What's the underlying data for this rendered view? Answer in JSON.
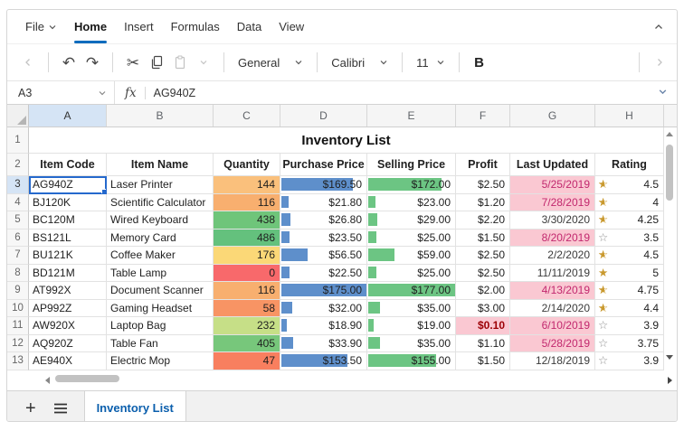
{
  "menu": {
    "items": [
      {
        "label": "File",
        "has_dropdown": true,
        "active": false
      },
      {
        "label": "Home",
        "has_dropdown": false,
        "active": true
      },
      {
        "label": "Insert",
        "has_dropdown": false,
        "active": false
      },
      {
        "label": "Formulas",
        "has_dropdown": false,
        "active": false
      },
      {
        "label": "Data",
        "has_dropdown": false,
        "active": false
      },
      {
        "label": "View",
        "has_dropdown": false,
        "active": false
      }
    ]
  },
  "toolbar": {
    "icons": {
      "undo": "↶",
      "redo": "↷",
      "cut": "✂"
    },
    "number_format": "General",
    "font_name": "Calibri",
    "font_size": "11",
    "bold_label": "B"
  },
  "formula_bar": {
    "name_box": "A3",
    "fx_label": "fx",
    "content": "AG940Z"
  },
  "grid": {
    "columns": [
      {
        "letter": "A",
        "selected": true
      },
      {
        "letter": "B",
        "selected": false
      },
      {
        "letter": "C",
        "selected": false
      },
      {
        "letter": "D",
        "selected": false
      },
      {
        "letter": "E",
        "selected": false
      },
      {
        "letter": "F",
        "selected": false
      },
      {
        "letter": "G",
        "selected": false
      },
      {
        "letter": "H",
        "selected": false
      }
    ],
    "title_row": {
      "number": "1",
      "title": "Inventory List"
    },
    "header_row": {
      "number": "2",
      "cells": [
        "Item Code",
        "Item Name",
        "Quantity",
        "Purchase Price",
        "Selling Price",
        "Profit",
        "Last Updated",
        "Rating"
      ]
    },
    "rows": [
      {
        "number": "3",
        "selected": true,
        "item_code": "AG940Z",
        "item_name": "Laser Printer",
        "quantity": "144",
        "qty_color": "#fac07c",
        "purchase": "$169.50",
        "purchase_bar_pct": 83,
        "selling": "$172.00",
        "selling_bar_pct": 83,
        "profit": "$2.50",
        "profit_low": false,
        "last_updated": "5/25/2019",
        "date_overdue": true,
        "star": "half",
        "rating": "4.5"
      },
      {
        "number": "4",
        "selected": false,
        "item_code": "BJ120K",
        "item_name": "Scientific Calculator",
        "quantity": "116",
        "qty_color": "#f8af6f",
        "purchase": "$21.80",
        "purchase_bar_pct": 8,
        "selling": "$23.00",
        "selling_bar_pct": 8,
        "profit": "$1.20",
        "profit_low": false,
        "last_updated": "7/28/2019",
        "date_overdue": true,
        "star": "half",
        "rating": "4"
      },
      {
        "number": "5",
        "selected": false,
        "item_code": "BC120M",
        "item_name": "Wired Keyboard",
        "quantity": "438",
        "qty_color": "#6fc57a",
        "purchase": "$26.80",
        "purchase_bar_pct": 10,
        "selling": "$29.00",
        "selling_bar_pct": 10,
        "profit": "$2.20",
        "profit_low": false,
        "last_updated": "3/30/2020",
        "date_overdue": false,
        "star": "half",
        "rating": "4.25"
      },
      {
        "number": "6",
        "selected": false,
        "item_code": "BS121L",
        "item_name": "Memory Card",
        "quantity": "486",
        "qty_color": "#64c17d",
        "purchase": "$23.50",
        "purchase_bar_pct": 9,
        "selling": "$25.00",
        "selling_bar_pct": 9,
        "profit": "$1.50",
        "profit_low": false,
        "last_updated": "8/20/2019",
        "date_overdue": true,
        "star": "empty",
        "rating": "3.5"
      },
      {
        "number": "7",
        "selected": false,
        "item_code": "BU121K",
        "item_name": "Coffee Maker",
        "quantity": "176",
        "qty_color": "#fbd877",
        "purchase": "$56.50",
        "purchase_bar_pct": 30,
        "selling": "$59.00",
        "selling_bar_pct": 30,
        "profit": "$2.50",
        "profit_low": false,
        "last_updated": "2/2/2020",
        "date_overdue": false,
        "star": "half",
        "rating": "4.5"
      },
      {
        "number": "8",
        "selected": false,
        "item_code": "BD121M",
        "item_name": "Table Lamp",
        "quantity": "0",
        "qty_color": "#f8696b",
        "purchase": "$22.50",
        "purchase_bar_pct": 9,
        "selling": "$25.00",
        "selling_bar_pct": 9,
        "profit": "$2.50",
        "profit_low": false,
        "last_updated": "11/11/2019",
        "date_overdue": false,
        "star": "full",
        "rating": "5"
      },
      {
        "number": "9",
        "selected": false,
        "item_code": "AT992X",
        "item_name": "Document Scanner",
        "quantity": "116",
        "qty_color": "#f8af6f",
        "purchase": "$175.00",
        "purchase_bar_pct": 100,
        "selling": "$177.00",
        "selling_bar_pct": 100,
        "profit": "$2.00",
        "profit_low": false,
        "last_updated": "4/13/2019",
        "date_overdue": true,
        "star": "half",
        "rating": "4.75"
      },
      {
        "number": "10",
        "selected": false,
        "item_code": "AP992Z",
        "item_name": "Gaming Headset",
        "quantity": "58",
        "qty_color": "#f89464",
        "purchase": "$32.00",
        "purchase_bar_pct": 13,
        "selling": "$35.00",
        "selling_bar_pct": 13,
        "profit": "$3.00",
        "profit_low": false,
        "last_updated": "2/14/2020",
        "date_overdue": false,
        "star": "half",
        "rating": "4.4"
      },
      {
        "number": "11",
        "selected": false,
        "item_code": "AW920X",
        "item_name": "Laptop Bag",
        "quantity": "232",
        "qty_color": "#c6df87",
        "purchase": "$18.90",
        "purchase_bar_pct": 6,
        "selling": "$19.00",
        "selling_bar_pct": 6,
        "profit": "$0.10",
        "profit_low": true,
        "last_updated": "6/10/2019",
        "date_overdue": true,
        "star": "empty",
        "rating": "3.9"
      },
      {
        "number": "12",
        "selected": false,
        "item_code": "AQ920Z",
        "item_name": "Table Fan",
        "quantity": "405",
        "qty_color": "#77c77b",
        "purchase": "$33.90",
        "purchase_bar_pct": 14,
        "selling": "$35.00",
        "selling_bar_pct": 13,
        "profit": "$1.10",
        "profit_low": false,
        "last_updated": "5/28/2019",
        "date_overdue": true,
        "star": "empty",
        "rating": "3.75"
      },
      {
        "number": "13",
        "selected": false,
        "item_code": "AE940X",
        "item_name": "Electric Mop",
        "quantity": "47",
        "qty_color": "#f87f5f",
        "purchase": "$153.50",
        "purchase_bar_pct": 77,
        "selling": "$155.00",
        "selling_bar_pct": 77,
        "profit": "$1.50",
        "profit_low": false,
        "last_updated": "12/18/2019",
        "date_overdue": false,
        "star": "empty",
        "rating": "3.9"
      }
    ]
  },
  "sheet_bar": {
    "add_label": "+",
    "tabs": [
      {
        "label": "Inventory List",
        "active": true
      }
    ]
  },
  "colors": {
    "accent_blue": "#0f6cbd",
    "selection_blue": "#2569cd",
    "bar_blue": "#5e8fcb",
    "bar_green": "#6cc583",
    "highlight_pink": "#fac8d2",
    "pink_text": "#c2286e",
    "low_profit_text": "#9c0006",
    "star_gold": "#c9992e"
  }
}
